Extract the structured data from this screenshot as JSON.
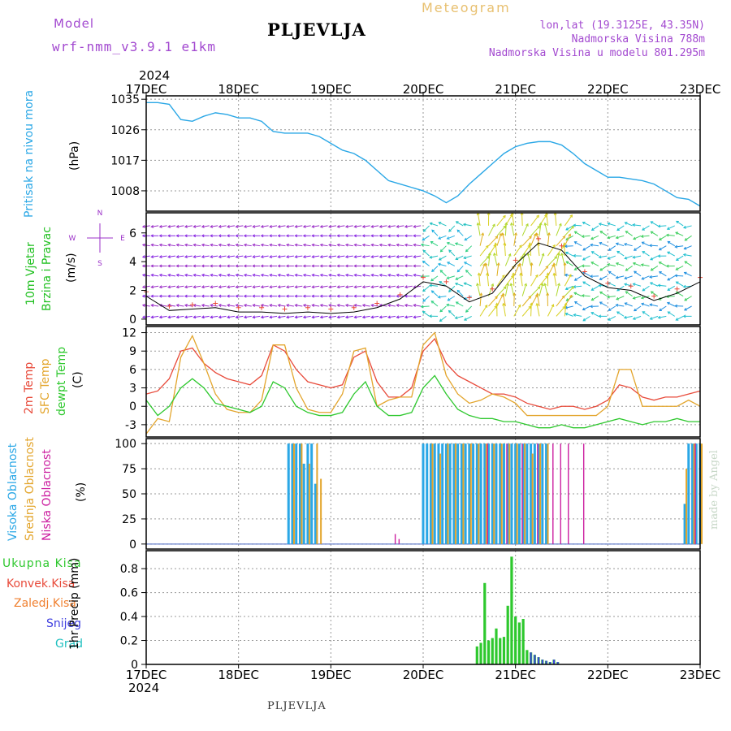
{
  "header": {
    "model_label": "Model",
    "model_name": "wrf-nmm_v3.9.1 e1km",
    "station": "PLJEVLJA",
    "product": "Meteogram",
    "coords": "lon,lat (19.3125E, 43.35N)",
    "elevation": "Nadmorska Visina 788m",
    "model_elevation": "Nadmorska Visina u modelu 801.295m",
    "year": "2024",
    "footer_station": "PLJEVLJA",
    "watermark": "made by Angel"
  },
  "colors": {
    "pressure": "#2aa7e6",
    "t2m": "#e84a3a",
    "sfc": "#e3a52c",
    "dewpt": "#2ec82e",
    "wind_gust_marker": "#e84a3a",
    "wind_speed_line": "#000000",
    "high_cloud": "#2aa7e6",
    "mid_cloud": "#e3a52c",
    "low_cloud": "#cc1fa0",
    "total_precip": "#2ec82e",
    "conv_precip": "#e84a3a",
    "frz_precip": "#f08030",
    "snow": "#4040e0",
    "hail": "#20c0c0",
    "wind_label": "#20c020",
    "compass": "#9b30c8",
    "header_purple": "#a34ad0",
    "header_orange": "#e8c070"
  },
  "chart_data": [
    {
      "type": "line",
      "panel": "pressure",
      "title": "Meteogram",
      "ylabel": "Pritisak na nivou mora",
      "unit": "(hPa)",
      "ylim": [
        1002,
        1036
      ],
      "yticks": [
        1008,
        1017,
        1026,
        1035
      ],
      "xlabels": [
        "17DEC",
        "18DEC",
        "19DEC",
        "20DEC",
        "21DEC",
        "22DEC",
        "23DEC"
      ],
      "x_unit": "hours since 17DEC 00UTC",
      "series": [
        {
          "key": "pressure",
          "x": [
            0,
            3,
            6,
            9,
            12,
            15,
            18,
            21,
            24,
            27,
            30,
            33,
            36,
            39,
            42,
            45,
            48,
            51,
            54,
            57,
            60,
            63,
            66,
            69,
            72,
            75,
            78,
            81,
            84,
            87,
            90,
            93,
            96,
            99,
            102,
            105,
            108,
            111,
            114,
            117,
            120,
            123,
            126,
            129,
            132,
            135,
            138,
            141,
            144
          ],
          "values": [
            1034,
            1034,
            1033.5,
            1029,
            1028.5,
            1030,
            1031,
            1030.5,
            1029.5,
            1029.5,
            1028.5,
            1025.5,
            1025,
            1025,
            1025,
            1024,
            1022,
            1020,
            1019,
            1017,
            1014,
            1011,
            1010,
            1009,
            1008,
            1006.5,
            1004.5,
            1006.5,
            1010,
            1013,
            1016,
            1019,
            1021,
            1022,
            1022.5,
            1022.5,
            1021.5,
            1019,
            1016,
            1014,
            1012,
            1012,
            1011.5,
            1011,
            1010,
            1008,
            1006,
            1005.5,
            1003.5
          ]
        }
      ]
    },
    {
      "type": "line",
      "panel": "wind",
      "ylabel": "10m Vjetar Brzina i Pravac",
      "unit": "(m/s)",
      "ylim": [
        -0.4,
        7.4
      ],
      "yticks": [
        0,
        2,
        4,
        6
      ],
      "compass_labels": [
        "N",
        "W",
        "E",
        "S"
      ],
      "series": [
        {
          "key": "wind_speed",
          "x": [
            0,
            6,
            12,
            18,
            24,
            30,
            36,
            42,
            48,
            54,
            60,
            66,
            72,
            78,
            84,
            90,
            96,
            102,
            108,
            114,
            120,
            126,
            132,
            138,
            144
          ],
          "values": [
            1.6,
            0.6,
            0.7,
            0.8,
            0.5,
            0.5,
            0.4,
            0.5,
            0.4,
            0.5,
            0.8,
            1.4,
            2.6,
            2.3,
            1.2,
            1.8,
            3.8,
            5.3,
            4.8,
            3.0,
            2.2,
            2.0,
            1.3,
            1.8,
            2.6
          ]
        }
      ]
    },
    {
      "type": "line",
      "panel": "temperature",
      "ylabel": [
        "2m Temp",
        "SFC Temp",
        "dewpt Temp"
      ],
      "unit": "(C)",
      "ylim": [
        -5,
        13
      ],
      "yticks": [
        -3,
        0,
        3,
        6,
        9,
        12
      ],
      "series": [
        {
          "key": "t2m",
          "name": "2m Temp",
          "x": [
            0,
            3,
            6,
            9,
            12,
            15,
            18,
            21,
            24,
            27,
            30,
            33,
            36,
            39,
            42,
            45,
            48,
            51,
            54,
            57,
            60,
            63,
            66,
            69,
            72,
            75,
            78,
            81,
            84,
            87,
            90,
            93,
            96,
            99,
            102,
            105,
            108,
            111,
            114,
            117,
            120,
            123,
            126,
            129,
            132,
            135,
            138,
            141,
            144
          ],
          "values": [
            2,
            2.5,
            4.5,
            9,
            9.5,
            7,
            5.5,
            4.5,
            4,
            3.5,
            5,
            10,
            9,
            6,
            4,
            3.5,
            3,
            3.5,
            8,
            9,
            4,
            1.5,
            1.5,
            3,
            9,
            11,
            7,
            5,
            4,
            3,
            2,
            2,
            1.5,
            0.5,
            0,
            -0.5,
            0,
            0,
            -0.5,
            0,
            1,
            3.5,
            3,
            1.5,
            1,
            1.5,
            1.5,
            2,
            2.5
          ]
        },
        {
          "key": "sfc",
          "name": "SFC Temp",
          "x": [
            0,
            3,
            6,
            9,
            12,
            15,
            18,
            21,
            24,
            27,
            30,
            33,
            36,
            39,
            42,
            45,
            48,
            51,
            54,
            57,
            60,
            63,
            66,
            69,
            72,
            75,
            78,
            81,
            84,
            87,
            90,
            93,
            96,
            99,
            102,
            105,
            108,
            111,
            114,
            117,
            120,
            123,
            126,
            129,
            132,
            135,
            138,
            141,
            144
          ],
          "values": [
            -4.5,
            -2,
            -2.5,
            8,
            11.5,
            7,
            2,
            -0.5,
            -1,
            -1,
            1,
            10,
            10,
            3,
            -0.5,
            -1,
            -1,
            2,
            9,
            9.5,
            0,
            1,
            1.5,
            1.5,
            10,
            12,
            5,
            2,
            0.5,
            1,
            2,
            1.5,
            0.5,
            -1.5,
            -1.5,
            -1.5,
            -1.5,
            -1.5,
            -1.5,
            -1.5,
            0,
            6,
            6,
            0,
            0,
            0,
            0,
            1,
            0
          ]
        },
        {
          "key": "dewpt",
          "name": "dewpt Temp",
          "x": [
            0,
            3,
            6,
            9,
            12,
            15,
            18,
            21,
            24,
            27,
            30,
            33,
            36,
            39,
            42,
            45,
            48,
            51,
            54,
            57,
            60,
            63,
            66,
            69,
            72,
            75,
            78,
            81,
            84,
            87,
            90,
            93,
            96,
            99,
            102,
            105,
            108,
            111,
            114,
            117,
            120,
            123,
            126,
            129,
            132,
            135,
            138,
            141,
            144
          ],
          "values": [
            1,
            -1.5,
            0,
            3,
            4.5,
            3,
            0.5,
            0,
            -0.5,
            -1,
            0,
            4,
            3,
            0,
            -1,
            -1.5,
            -1.5,
            -1,
            2,
            4,
            0,
            -1.5,
            -1.5,
            -1,
            3,
            5,
            2,
            -0.5,
            -1.5,
            -2,
            -2,
            -2.5,
            -2.5,
            -3,
            -3.5,
            -3.5,
            -3,
            -3.5,
            -3.5,
            -3,
            -2.5,
            -2,
            -2.5,
            -3,
            -2.5,
            -2.5,
            -2,
            -2.5,
            -2.5
          ]
        }
      ]
    },
    {
      "type": "bar",
      "panel": "cloud",
      "ylabel": [
        "Visoka Oblacnost",
        "Srednja Oblacnost",
        "Niska Oblacnost"
      ],
      "unit": "(%)",
      "ylim": [
        -5,
        105
      ],
      "yticks": [
        0,
        25,
        50,
        75,
        100
      ],
      "series": [
        {
          "key": "high_cloud",
          "name": "Visoka Oblacnost",
          "x": [
            37,
            38,
            39,
            40,
            41,
            42,
            43,
            44,
            72,
            73,
            74,
            75,
            76,
            77,
            78,
            79,
            80,
            81,
            82,
            83,
            84,
            85,
            86,
            87,
            88,
            89,
            90,
            91,
            92,
            93,
            94,
            95,
            96,
            97,
            98,
            99,
            100,
            101,
            102,
            103,
            104,
            140,
            141,
            142,
            143,
            144
          ],
          "values": [
            100,
            100,
            100,
            100,
            80,
            100,
            100,
            60,
            100,
            100,
            100,
            100,
            100,
            100,
            100,
            100,
            100,
            100,
            100,
            100,
            100,
            100,
            100,
            100,
            100,
            100,
            100,
            100,
            100,
            100,
            100,
            100,
            100,
            100,
            100,
            100,
            100,
            100,
            100,
            100,
            100,
            40,
            100,
            100,
            100,
            100
          ]
        },
        {
          "key": "mid_cloud",
          "name": "Srednja Oblacnost",
          "x": [
            38,
            40,
            42,
            44,
            45,
            74,
            76,
            78,
            80,
            82,
            84,
            86,
            88,
            90,
            92,
            94,
            96,
            98,
            100,
            102,
            104,
            140,
            142,
            144
          ],
          "values": [
            100,
            100,
            80,
            100,
            65,
            100,
            90,
            100,
            100,
            100,
            100,
            100,
            100,
            100,
            100,
            100,
            100,
            100,
            90,
            100,
            100,
            75,
            100,
            100
          ]
        },
        {
          "key": "low_cloud",
          "name": "Niska Oblacnost",
          "x": [
            64,
            65,
            88,
            93,
            97,
            101,
            105,
            107,
            109,
            113,
            142
          ],
          "values": [
            10,
            5,
            100,
            100,
            100,
            100,
            100,
            100,
            100,
            100,
            100
          ]
        }
      ]
    },
    {
      "type": "bar",
      "panel": "precip",
      "ylabel": "1hr Precip",
      "unit": "(mm)",
      "ylim": [
        0,
        0.95
      ],
      "yticks": [
        0,
        0.2,
        0.4,
        0.6,
        0.8
      ],
      "xlabels": [
        "17DEC",
        "18DEC",
        "19DEC",
        "20DEC",
        "21DEC",
        "22DEC",
        "23DEC"
      ],
      "legend": [
        "Ukupna Kisa",
        "Konvek.Kisa",
        "Zaledj.Kisa",
        "Snijeg",
        "Grad"
      ],
      "series": [
        {
          "key": "total_precip",
          "name": "Ukupna Kisa",
          "x": [
            86,
            87,
            88,
            89,
            90,
            91,
            92,
            93,
            94,
            95,
            96,
            97,
            98,
            99,
            100,
            101,
            102,
            103,
            104,
            105,
            106,
            107
          ],
          "values": [
            0.15,
            0.18,
            0.68,
            0.2,
            0.22,
            0.3,
            0.22,
            0.23,
            0.49,
            0.9,
            0.4,
            0.35,
            0.38,
            0.12,
            0.1,
            0.08,
            0.06,
            0.04,
            0.03,
            0.02,
            0.04,
            0.02
          ]
        },
        {
          "key": "snow",
          "name": "Snijeg",
          "x": [
            100,
            101,
            102,
            103,
            104,
            105,
            106,
            107
          ],
          "values": [
            0.1,
            0.08,
            0.06,
            0.04,
            0.03,
            0.02,
            0.04,
            0.02
          ]
        }
      ]
    }
  ]
}
